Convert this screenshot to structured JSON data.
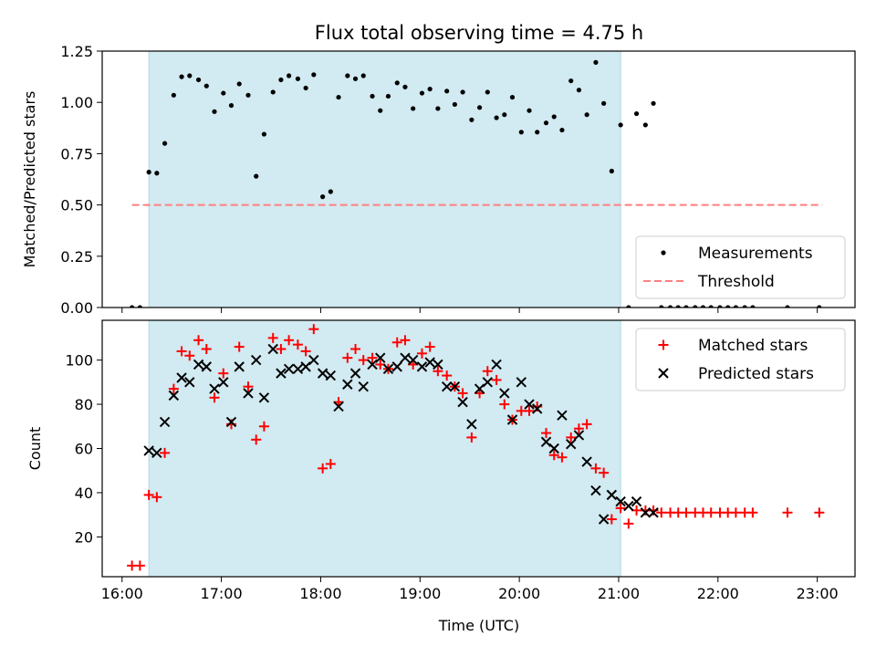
{
  "title": "Flux total observing time = 4.75 h",
  "xlabel": "Time (UTC)",
  "x_ticks": [
    "16:00",
    "17:00",
    "18:00",
    "19:00",
    "20:00",
    "21:00",
    "22:00",
    "23:00"
  ],
  "colors": {
    "shade": "#add8e6",
    "measure": "#000000",
    "threshold": "#ff7f7f",
    "matched": "#ff0000",
    "predicted": "#000000"
  },
  "chart_data": [
    {
      "type": "scatter",
      "ylabel": "Matched/Predicted stars",
      "xlim": [
        15.8,
        23.38
      ],
      "ylim": [
        0,
        1.25
      ],
      "y_ticks": [
        0.0,
        0.25,
        0.5,
        0.75,
        1.0,
        1.25
      ],
      "y_tick_labels": [
        "0.00",
        "0.25",
        "0.50",
        "0.75",
        "1.00",
        "1.25"
      ],
      "shaded_span": [
        16.27,
        21.02
      ],
      "threshold": {
        "y": 0.5,
        "x": [
          16.1,
          23.05
        ],
        "label": "Threshold"
      },
      "legend": [
        "Measurements",
        "Threshold"
      ],
      "legend_loc": "lower right",
      "series": [
        {
          "name": "Measurements",
          "marker": "dot",
          "x": [
            16.1,
            16.18,
            16.27,
            16.35,
            16.43,
            16.52,
            16.6,
            16.68,
            16.77,
            16.85,
            16.93,
            17.02,
            17.1,
            17.18,
            17.27,
            17.35,
            17.43,
            17.52,
            17.6,
            17.68,
            17.77,
            17.85,
            17.93,
            18.02,
            18.1,
            18.18,
            18.27,
            18.35,
            18.43,
            18.52,
            18.6,
            18.68,
            18.77,
            18.85,
            18.93,
            19.02,
            19.1,
            19.18,
            19.27,
            19.35,
            19.43,
            19.52,
            19.6,
            19.68,
            19.77,
            19.85,
            19.93,
            20.02,
            20.1,
            20.18,
            20.27,
            20.35,
            20.43,
            20.52,
            20.6,
            20.68,
            20.77,
            20.85,
            20.93,
            21.02,
            21.1,
            21.18,
            21.27,
            21.35,
            21.43,
            21.52,
            21.6,
            21.68,
            21.77,
            21.85,
            21.93,
            22.02,
            22.1,
            22.18,
            22.27,
            22.35,
            22.7,
            23.02
          ],
          "y": [
            0,
            0,
            0.66,
            0.655,
            0.8,
            1.035,
            1.125,
            1.13,
            1.11,
            1.08,
            0.955,
            1.045,
            0.985,
            1.09,
            1.035,
            0.64,
            0.845,
            1.05,
            1.11,
            1.13,
            1.115,
            1.07,
            1.135,
            0.54,
            0.565,
            1.025,
            1.13,
            1.115,
            1.13,
            1.03,
            0.96,
            1.03,
            1.095,
            1.075,
            0.97,
            1.045,
            1.065,
            0.97,
            1.055,
            0.99,
            1.05,
            0.915,
            0.975,
            1.05,
            0.925,
            0.94,
            1.025,
            0.855,
            0.96,
            0.855,
            0.9,
            0.93,
            0.865,
            1.105,
            1.06,
            0.94,
            1.195,
            0.995,
            0.665,
            0.89,
            0,
            0.945,
            0.89,
            0.995,
            0,
            0,
            0,
            0,
            0,
            0,
            0,
            0,
            0,
            0,
            0,
            0,
            0,
            0
          ]
        }
      ]
    },
    {
      "type": "scatter",
      "ylabel": "Count",
      "xlim": [
        15.8,
        23.38
      ],
      "ylim": [
        2,
        118
      ],
      "y_ticks": [
        20,
        40,
        60,
        80,
        100
      ],
      "y_tick_labels": [
        "20",
        "40",
        "60",
        "80",
        "100"
      ],
      "shaded_span": [
        16.27,
        21.02
      ],
      "legend": [
        "Matched stars",
        "Predicted stars"
      ],
      "legend_loc": "upper right",
      "series": [
        {
          "name": "Matched stars",
          "marker": "plus",
          "x": [
            16.1,
            16.18,
            16.27,
            16.35,
            16.43,
            16.52,
            16.6,
            16.68,
            16.77,
            16.85,
            16.93,
            17.02,
            17.1,
            17.18,
            17.27,
            17.35,
            17.43,
            17.52,
            17.6,
            17.68,
            17.77,
            17.85,
            17.93,
            18.02,
            18.1,
            18.18,
            18.27,
            18.35,
            18.43,
            18.52,
            18.6,
            18.68,
            18.77,
            18.85,
            18.93,
            19.02,
            19.1,
            19.18,
            19.27,
            19.35,
            19.43,
            19.52,
            19.6,
            19.68,
            19.77,
            19.85,
            19.93,
            20.02,
            20.1,
            20.18,
            20.27,
            20.35,
            20.43,
            20.52,
            20.6,
            20.68,
            20.77,
            20.85,
            20.93,
            21.02,
            21.1,
            21.18,
            21.27,
            21.35,
            21.43,
            21.52,
            21.6,
            21.68,
            21.77,
            21.85,
            21.93,
            22.02,
            22.1,
            22.18,
            22.27,
            22.35,
            22.7,
            23.02
          ],
          "y": [
            7,
            7,
            39,
            38,
            58,
            87,
            104,
            102,
            109,
            105,
            83,
            94,
            71,
            106,
            88,
            64,
            70,
            110,
            105,
            109,
            107,
            104,
            114,
            51,
            53,
            81,
            101,
            105,
            100,
            101,
            98,
            96,
            108,
            109,
            98,
            103,
            106,
            95,
            93,
            88,
            85,
            65,
            85,
            95,
            91,
            80,
            73,
            77,
            77,
            79,
            67,
            57,
            56,
            65,
            69,
            71,
            51,
            49,
            28,
            33,
            26,
            32,
            32,
            32,
            31,
            31,
            31,
            31,
            31,
            31,
            31,
            31,
            31,
            31,
            31,
            31,
            31,
            31
          ]
        },
        {
          "name": "Predicted stars",
          "marker": "x",
          "x": [
            16.27,
            16.35,
            16.43,
            16.52,
            16.6,
            16.68,
            16.77,
            16.85,
            16.93,
            17.02,
            17.1,
            17.18,
            17.27,
            17.35,
            17.43,
            17.52,
            17.6,
            17.68,
            17.77,
            17.85,
            17.93,
            18.02,
            18.1,
            18.18,
            18.27,
            18.35,
            18.43,
            18.52,
            18.6,
            18.68,
            18.77,
            18.85,
            18.93,
            19.02,
            19.1,
            19.18,
            19.27,
            19.35,
            19.43,
            19.52,
            19.6,
            19.68,
            19.77,
            19.85,
            19.93,
            20.02,
            20.1,
            20.18,
            20.27,
            20.35,
            20.43,
            20.52,
            20.6,
            20.68,
            20.77,
            20.85,
            20.93,
            21.02,
            21.1,
            21.18,
            21.27,
            21.35
          ],
          "y": [
            59,
            58,
            72,
            84,
            92,
            90,
            98,
            97,
            87,
            90,
            72,
            97,
            85,
            100,
            83,
            105,
            94,
            96,
            96,
            97,
            100,
            94,
            93,
            79,
            89,
            94,
            88,
            98,
            101,
            96,
            97,
            101,
            100,
            97,
            99,
            98,
            88,
            88,
            81,
            71,
            87,
            90,
            98,
            85,
            73,
            90,
            80,
            78,
            63,
            60,
            75,
            62,
            66,
            54,
            41,
            28,
            39,
            36,
            34,
            36,
            31,
            31
          ]
        }
      ]
    }
  ]
}
